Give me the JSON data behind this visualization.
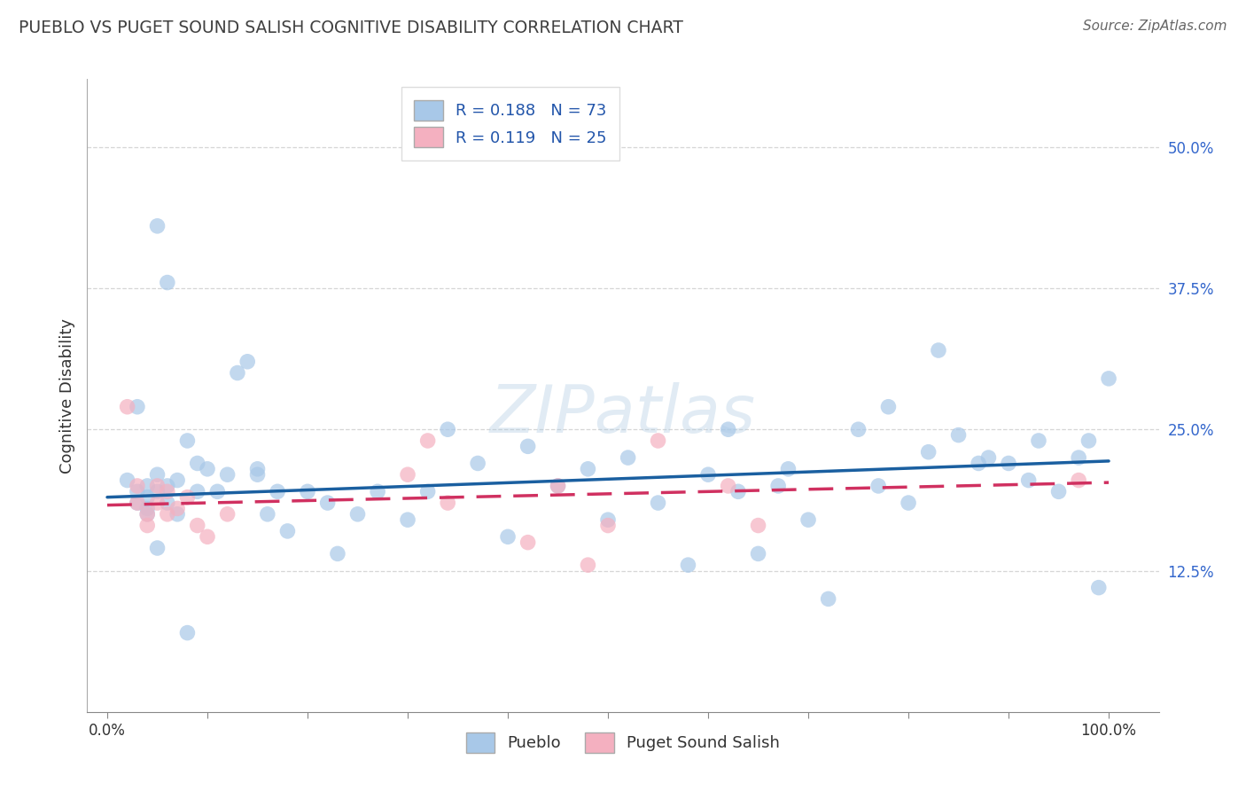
{
  "title": "PUEBLO VS PUGET SOUND SALISH COGNITIVE DISABILITY CORRELATION CHART",
  "source": "Source: ZipAtlas.com",
  "ylabel": "Cognitive Disability",
  "watermark": "ZIPatlas",
  "xlim": [
    -0.02,
    1.05
  ],
  "ylim": [
    0.0,
    0.56
  ],
  "ytick_labels": [
    "12.5%",
    "25.0%",
    "37.5%",
    "50.0%"
  ],
  "ytick_values": [
    0.125,
    0.25,
    0.375,
    0.5
  ],
  "xtick_values": [
    0.0,
    0.1,
    0.2,
    0.3,
    0.4,
    0.5,
    0.6,
    0.7,
    0.8,
    0.9,
    1.0
  ],
  "xtick_labels": [
    "0.0%",
    "",
    "",
    "",
    "",
    "",
    "",
    "",
    "",
    "",
    "100.0%"
  ],
  "legend_r_pueblo": "R = 0.188",
  "legend_n_pueblo": "N = 73",
  "legend_r_salish": "R = 0.119",
  "legend_n_salish": "N = 25",
  "pueblo_color": "#a8c8e8",
  "salish_color": "#f4b0c0",
  "pueblo_line_color": "#1a5fa0",
  "salish_line_color": "#d03060",
  "background_color": "#ffffff",
  "grid_color": "#cccccc",
  "title_color": "#404040",
  "pueblo_scatter_x": [
    0.02,
    0.03,
    0.03,
    0.04,
    0.04,
    0.04,
    0.04,
    0.05,
    0.05,
    0.06,
    0.06,
    0.07,
    0.07,
    0.08,
    0.09,
    0.09,
    0.1,
    0.11,
    0.12,
    0.13,
    0.14,
    0.15,
    0.15,
    0.16,
    0.17,
    0.18,
    0.2,
    0.22,
    0.23,
    0.25,
    0.27,
    0.3,
    0.32,
    0.34,
    0.37,
    0.4,
    0.42,
    0.45,
    0.48,
    0.5,
    0.52,
    0.55,
    0.58,
    0.6,
    0.62,
    0.63,
    0.65,
    0.67,
    0.68,
    0.7,
    0.72,
    0.75,
    0.77,
    0.78,
    0.8,
    0.82,
    0.83,
    0.85,
    0.87,
    0.88,
    0.9,
    0.92,
    0.93,
    0.95,
    0.97,
    0.98,
    0.99,
    1.0,
    0.05,
    0.06,
    0.08,
    0.03,
    0.05
  ],
  "pueblo_scatter_y": [
    0.205,
    0.195,
    0.185,
    0.19,
    0.2,
    0.18,
    0.175,
    0.21,
    0.195,
    0.2,
    0.185,
    0.205,
    0.175,
    0.24,
    0.22,
    0.195,
    0.215,
    0.195,
    0.21,
    0.3,
    0.31,
    0.21,
    0.215,
    0.175,
    0.195,
    0.16,
    0.195,
    0.185,
    0.14,
    0.175,
    0.195,
    0.17,
    0.195,
    0.25,
    0.22,
    0.155,
    0.235,
    0.2,
    0.215,
    0.17,
    0.225,
    0.185,
    0.13,
    0.21,
    0.25,
    0.195,
    0.14,
    0.2,
    0.215,
    0.17,
    0.1,
    0.25,
    0.2,
    0.27,
    0.185,
    0.23,
    0.32,
    0.245,
    0.22,
    0.225,
    0.22,
    0.205,
    0.24,
    0.195,
    0.225,
    0.24,
    0.11,
    0.295,
    0.43,
    0.38,
    0.07,
    0.27,
    0.145
  ],
  "salish_scatter_x": [
    0.02,
    0.03,
    0.03,
    0.04,
    0.04,
    0.05,
    0.05,
    0.06,
    0.06,
    0.07,
    0.08,
    0.09,
    0.1,
    0.12,
    0.3,
    0.32,
    0.34,
    0.42,
    0.45,
    0.48,
    0.5,
    0.55,
    0.62,
    0.65,
    0.97
  ],
  "salish_scatter_y": [
    0.27,
    0.2,
    0.185,
    0.175,
    0.165,
    0.2,
    0.185,
    0.195,
    0.175,
    0.18,
    0.19,
    0.165,
    0.155,
    0.175,
    0.21,
    0.24,
    0.185,
    0.15,
    0.2,
    0.13,
    0.165,
    0.24,
    0.2,
    0.165,
    0.205
  ],
  "pueblo_trend_x": [
    0.0,
    1.0
  ],
  "pueblo_trend_y": [
    0.19,
    0.222
  ],
  "salish_trend_x": [
    0.0,
    1.0
  ],
  "salish_trend_y": [
    0.183,
    0.203
  ]
}
